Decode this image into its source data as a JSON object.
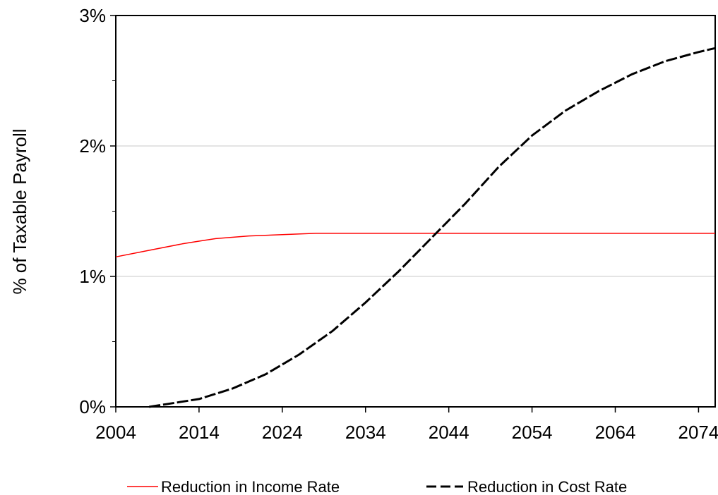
{
  "chart_data": {
    "type": "line",
    "title": "",
    "xlabel": "",
    "ylabel": "% of Taxable Payroll",
    "xlim": [
      2004,
      2076
    ],
    "ylim": [
      0,
      3
    ],
    "x_ticks": [
      "2004",
      "2014",
      "2024",
      "2034",
      "2044",
      "2054",
      "2064",
      "2074"
    ],
    "y_ticks": [
      "0%",
      "1%",
      "2%",
      "3%"
    ],
    "grid": "horizontal",
    "legend_position": "bottom",
    "series": [
      {
        "name": "Reduction in Income Rate",
        "color": "#ff0000",
        "style": "solid",
        "x": [
          2004,
          2008,
          2012,
          2014,
          2016,
          2020,
          2024,
          2028,
          2034,
          2044,
          2054,
          2064,
          2076
        ],
        "y": [
          1.15,
          1.2,
          1.25,
          1.27,
          1.29,
          1.31,
          1.32,
          1.33,
          1.33,
          1.33,
          1.33,
          1.33,
          1.33
        ]
      },
      {
        "name": "Reduction in Cost Rate",
        "color": "#000000",
        "style": "dashed",
        "x": [
          2008,
          2010,
          2014,
          2018,
          2022,
          2026,
          2030,
          2034,
          2038,
          2042,
          2044,
          2046,
          2050,
          2054,
          2058,
          2062,
          2066,
          2070,
          2074,
          2076
        ],
        "y": [
          0,
          0.02,
          0.06,
          0.14,
          0.25,
          0.4,
          0.58,
          0.8,
          1.04,
          1.3,
          1.43,
          1.56,
          1.84,
          2.08,
          2.27,
          2.42,
          2.55,
          2.65,
          2.72,
          2.75
        ]
      }
    ]
  }
}
